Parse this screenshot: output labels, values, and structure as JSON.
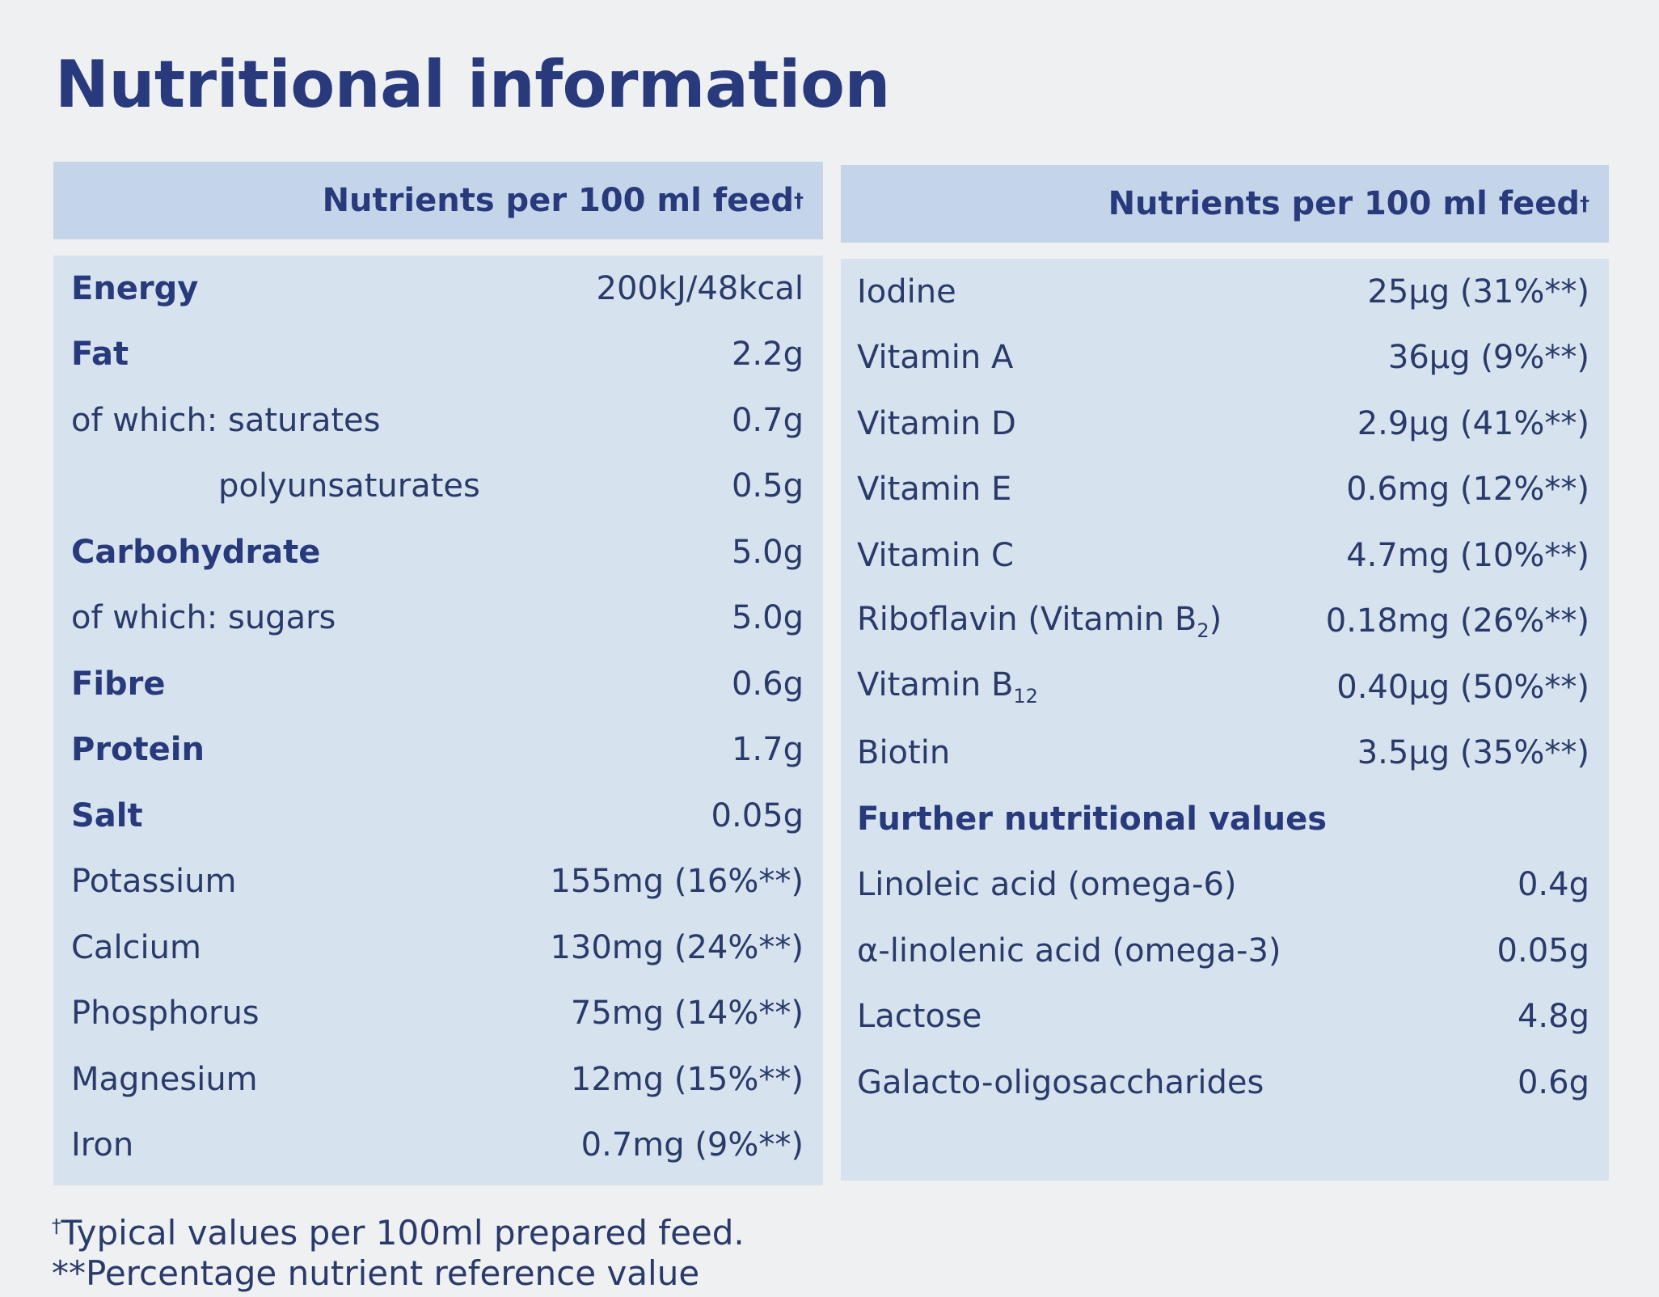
{
  "title": "Nutritional information",
  "left_header": "Nutrients per 100 ml feed",
  "right_header": "Nutrients per 100 ml feed",
  "header_mark": "†",
  "left_rows": [
    {
      "label": "Energy",
      "value": "200kJ/48kcal",
      "bold": true
    },
    {
      "label": "Fat",
      "value": "2.2g",
      "bold": true
    },
    {
      "label": "of which: saturates",
      "value": "0.7g"
    },
    {
      "label": "polyunsaturates",
      "value": "0.5g",
      "indent": true
    },
    {
      "label": "Carbohydrate",
      "value": "5.0g",
      "bold": true
    },
    {
      "label": "of which: sugars",
      "value": "5.0g"
    },
    {
      "label": "Fibre",
      "value": "0.6g",
      "bold": true
    },
    {
      "label": "Protein",
      "value": "1.7g",
      "bold": true
    },
    {
      "label": "Salt",
      "value": "0.05g",
      "bold": true
    },
    {
      "label": "Potassium",
      "value": "155mg (16%**)"
    },
    {
      "label": "Calcium",
      "value": "130mg (24%**)"
    },
    {
      "label": "Phosphorus",
      "value": "75mg (14%**)"
    },
    {
      "label": "Magnesium",
      "value": "12mg (15%**)"
    },
    {
      "label": "Iron",
      "value": "0.7mg (9%**)"
    }
  ],
  "right_rows": [
    {
      "label": "Iodine",
      "value": "25µg (31%**)"
    },
    {
      "label": "Vitamin A",
      "value": "36µg (9%**)"
    },
    {
      "label": "Vitamin D",
      "value": "2.9µg (41%**)"
    },
    {
      "label": "Vitamin E",
      "value": "0.6mg (12%**)"
    },
    {
      "label": "Vitamin C",
      "value": "4.7mg (10%**)"
    },
    {
      "label": "Riboflavin (Vitamin B",
      "sub": "2",
      "label_end": ")",
      "value": "0.18mg (26%**)"
    },
    {
      "label": "Vitamin B",
      "sub": "12",
      "value": "0.40µg (50%**)"
    },
    {
      "label": "Biotin",
      "value": "3.5µg (35%**)"
    },
    {
      "label": "Further nutritional values",
      "value": "",
      "section": true
    },
    {
      "label": "Linoleic acid (omega-6)",
      "value": "0.4g"
    },
    {
      "label": "α-linolenic acid (omega-3)",
      "value": "0.05g"
    },
    {
      "label": "Lactose",
      "value": "4.8g"
    },
    {
      "label": "Galacto-oligosaccharides",
      "value": "0.6g"
    }
  ],
  "footnotes": {
    "line1_mark": "†",
    "line1": "Typical values per 100ml prepared feed.",
    "line2": "**Percentage nutrient reference value"
  }
}
